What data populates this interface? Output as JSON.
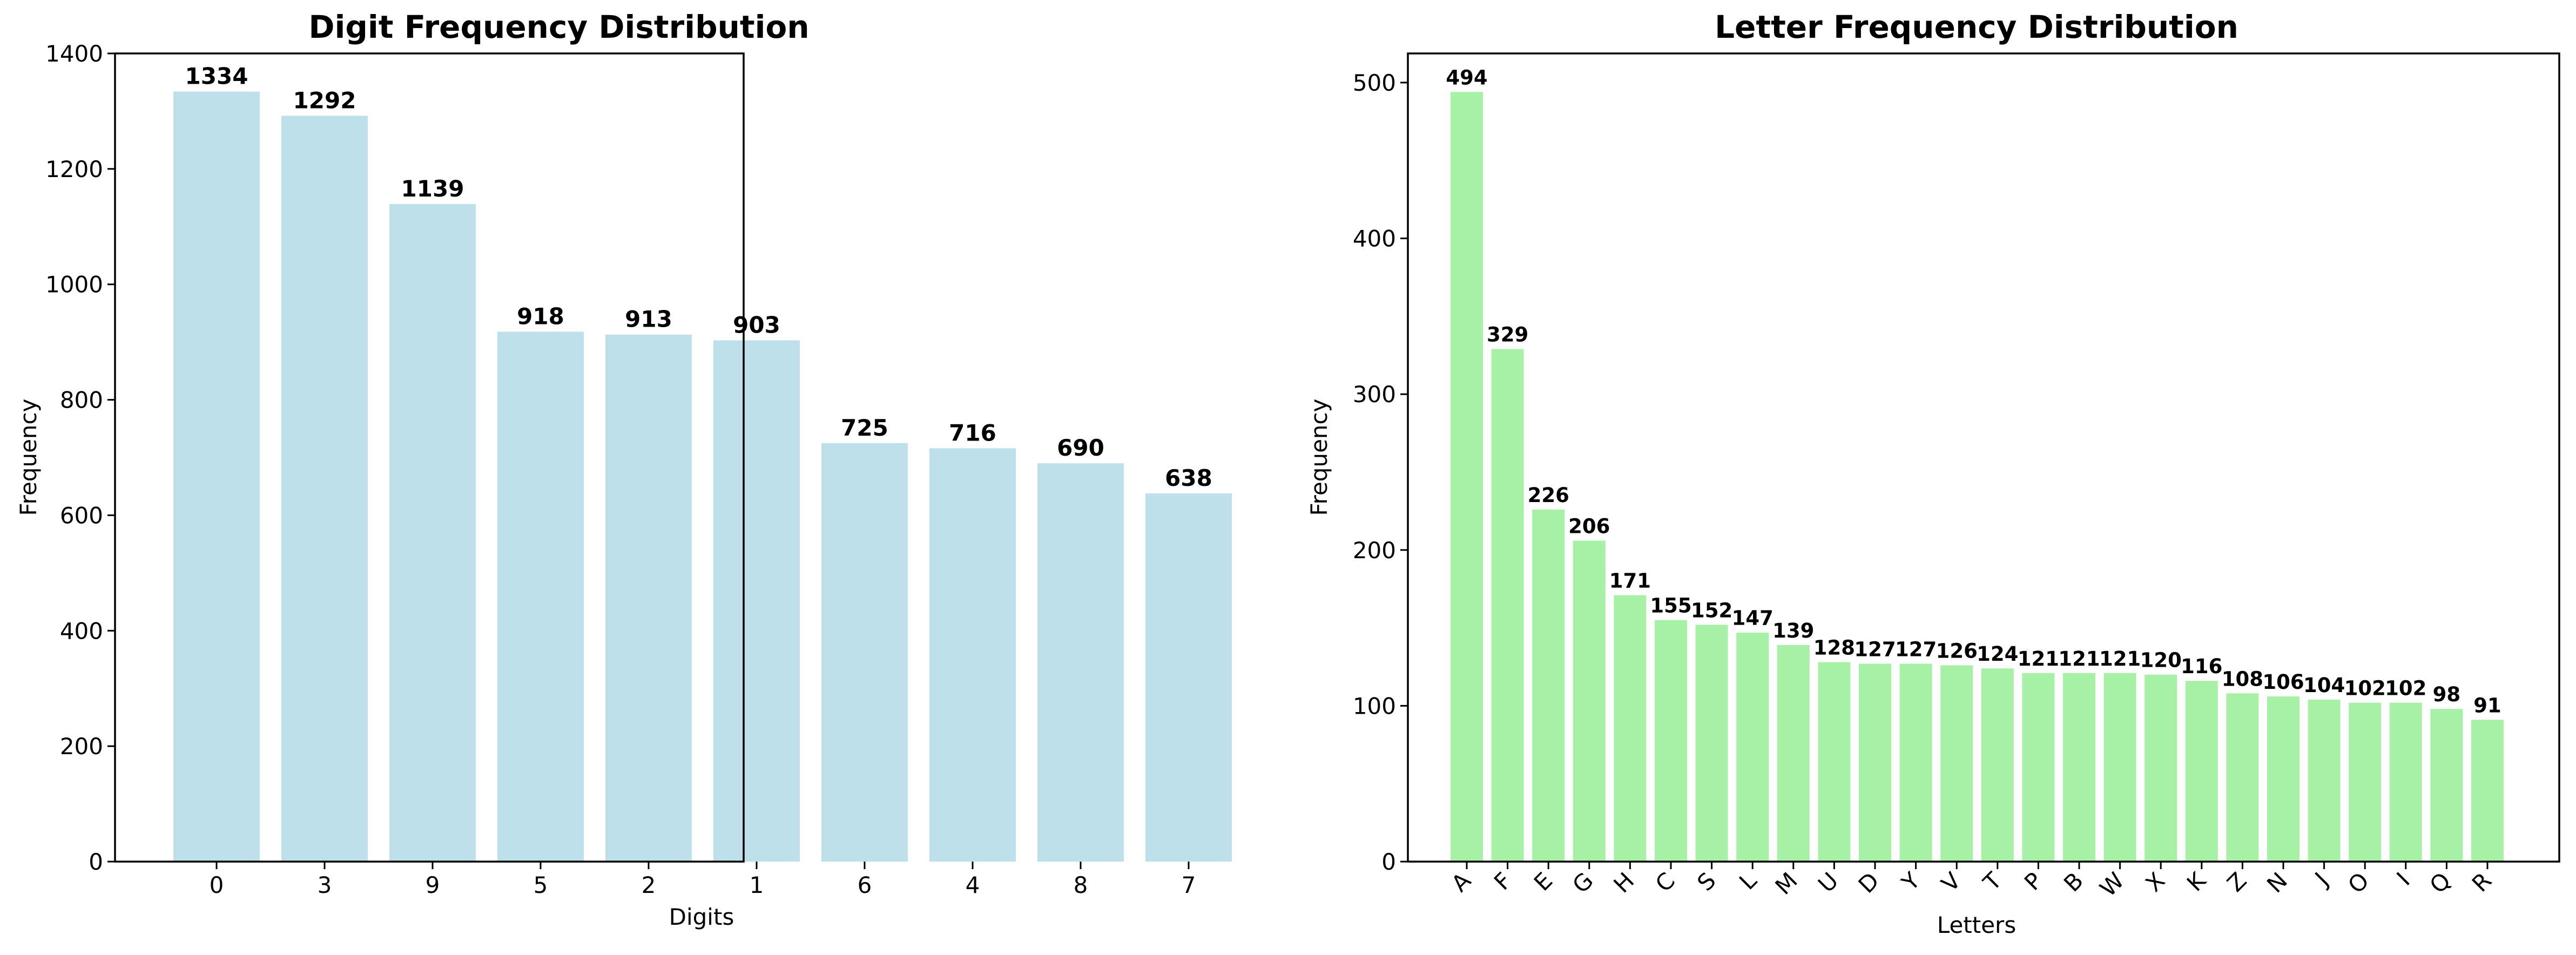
{
  "chart_data": [
    {
      "type": "bar",
      "title": "Digit Frequency Distribution",
      "xlabel": "Digits",
      "ylabel": "Frequency",
      "categories": [
        "0",
        "3",
        "9",
        "5",
        "2",
        "1",
        "6",
        "4",
        "8",
        "7"
      ],
      "values": [
        1334,
        1292,
        1139,
        918,
        913,
        903,
        725,
        716,
        690,
        638
      ],
      "yticks": [
        0,
        200,
        400,
        600,
        800,
        1000,
        1200,
        1400
      ],
      "ylim": [
        0,
        1400
      ],
      "bar_color": "#add8e6",
      "grid": false,
      "x_tick_rotation": 0
    },
    {
      "type": "bar",
      "title": "Letter Frequency Distribution",
      "xlabel": "Letters",
      "ylabel": "Frequency",
      "categories": [
        "A",
        "F",
        "E",
        "G",
        "H",
        "C",
        "S",
        "L",
        "M",
        "U",
        "D",
        "Y",
        "V",
        "T",
        "P",
        "B",
        "W",
        "X",
        "K",
        "Z",
        "N",
        "J",
        "O",
        "I",
        "Q",
        "R"
      ],
      "values": [
        494,
        329,
        226,
        206,
        171,
        155,
        152,
        147,
        139,
        128,
        127,
        127,
        126,
        124,
        121,
        121,
        121,
        120,
        116,
        108,
        106,
        104,
        102,
        102,
        98,
        91
      ],
      "yticks": [
        0,
        100,
        200,
        300,
        400,
        500
      ],
      "ylim": [
        0,
        518.7
      ],
      "bar_color": "#90ee90",
      "grid": false,
      "x_tick_rotation": 45
    }
  ]
}
